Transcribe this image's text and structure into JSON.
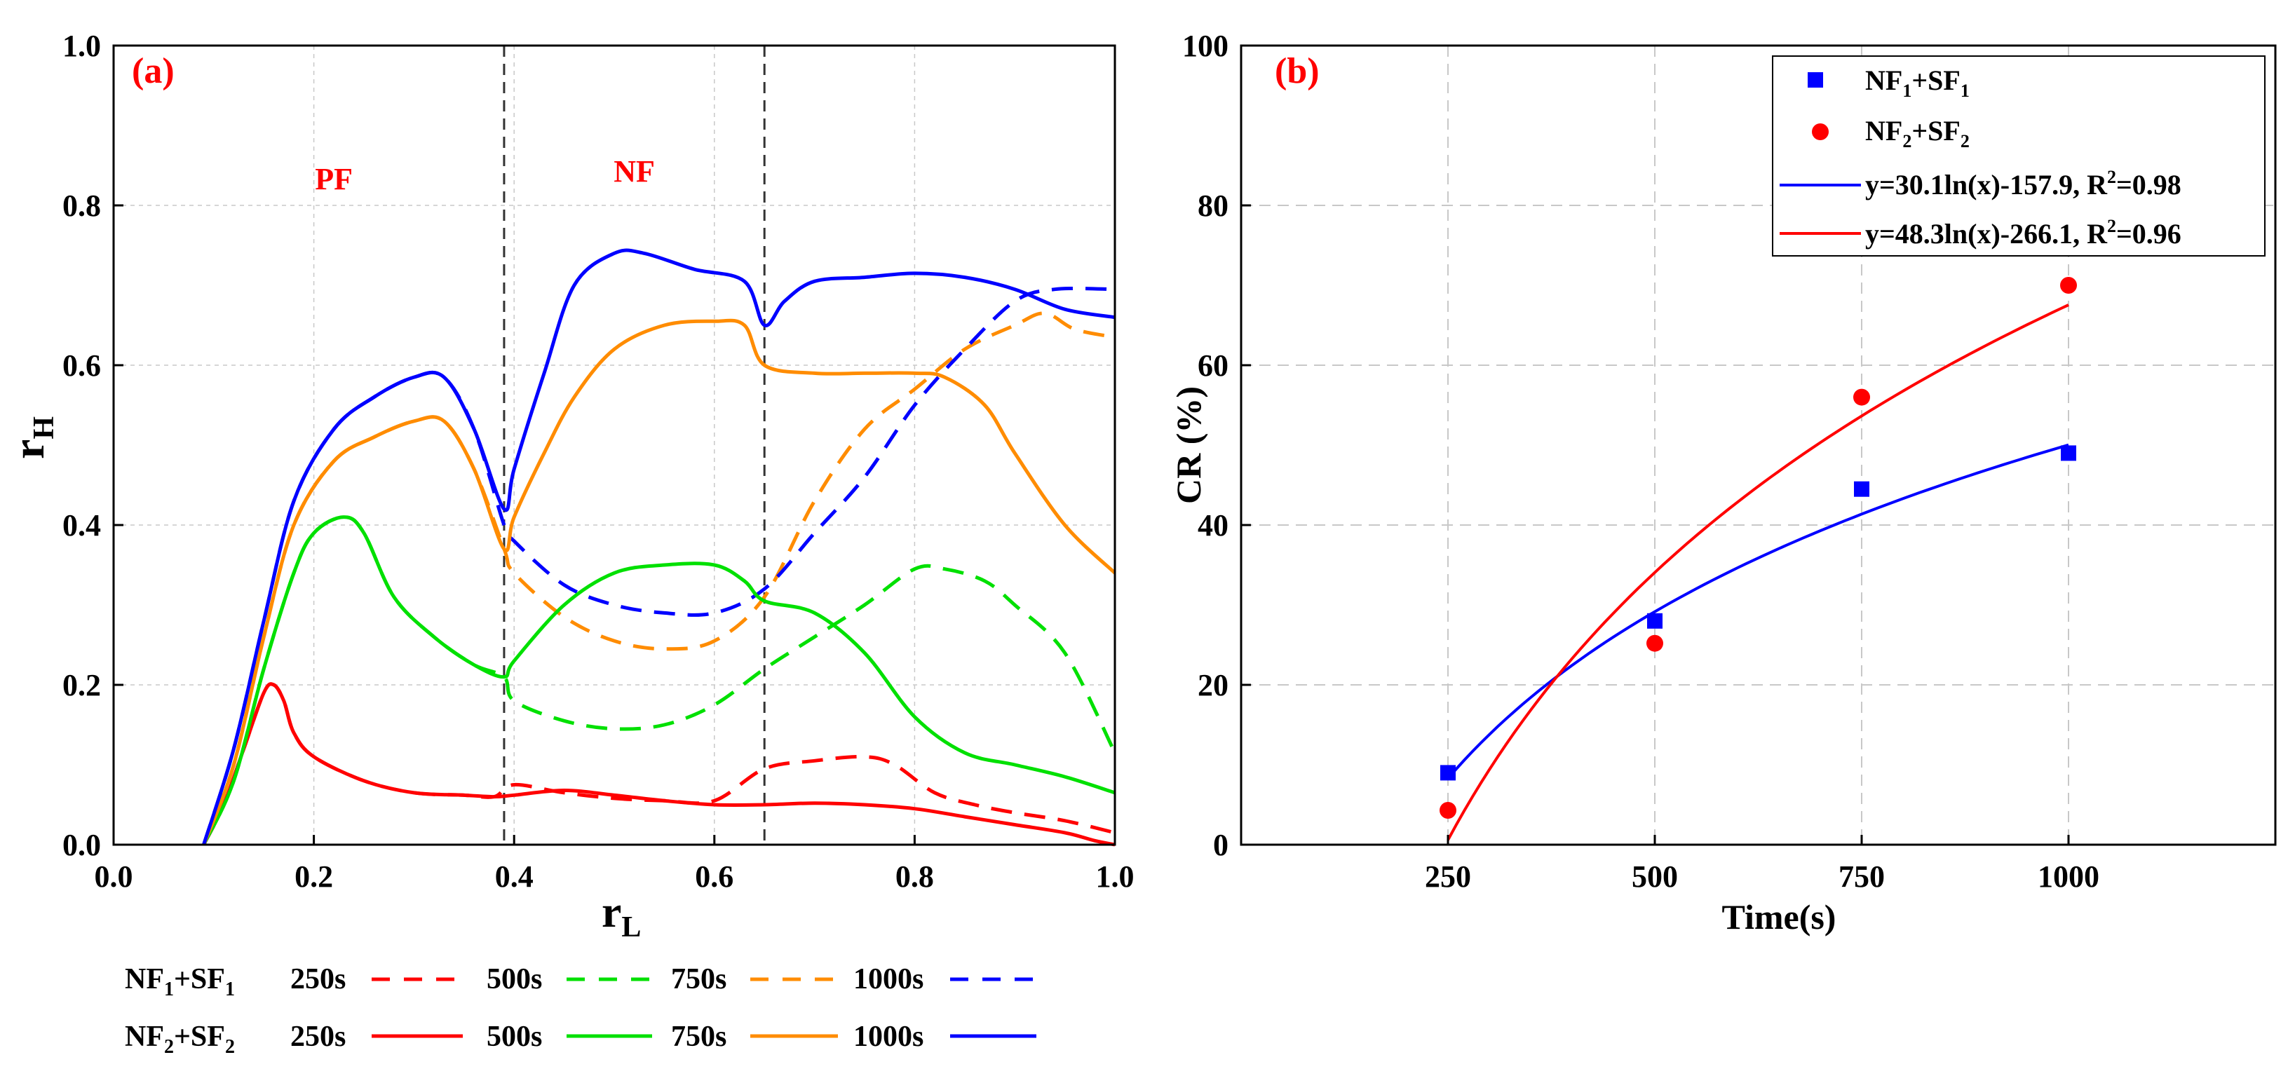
{
  "colors": {
    "red": "#ff0000",
    "green": "#00e000",
    "orange": "#ff8c00",
    "blue": "#0000ff",
    "grid": "#c8c8c8"
  },
  "panel_a": {
    "label": "(a)",
    "xlabel_main": "r",
    "xlabel_sub": "L",
    "ylabel_main": "r",
    "ylabel_sub": "H",
    "region_labels": [
      {
        "text": "PF",
        "x": 0.22,
        "y": 0.82
      },
      {
        "text": "NF",
        "x": 0.52,
        "y": 0.83
      }
    ],
    "xlim": [
      0,
      1
    ],
    "ylim": [
      0,
      1
    ],
    "xticks": [
      "0.0",
      "0.2",
      "0.4",
      "0.6",
      "0.8",
      "1.0"
    ],
    "yticks": [
      "0.0",
      "0.2",
      "0.4",
      "0.6",
      "0.8",
      "1.0"
    ],
    "xtick_values": [
      0,
      0.2,
      0.4,
      0.6,
      0.8,
      1.0
    ],
    "ytick_values": [
      0,
      0.2,
      0.4,
      0.6,
      0.8,
      1.0
    ],
    "vlines": [
      0.39,
      0.65
    ]
  },
  "panel_b": {
    "label": "(b)",
    "xlabel": "Time(s)",
    "ylabel": "CR (%)",
    "xlim": [
      0,
      1250
    ],
    "ylim": [
      0,
      100
    ],
    "xticks": [
      "250",
      "500",
      "750",
      "1000"
    ],
    "xtick_values": [
      250,
      500,
      750,
      1000
    ],
    "yticks": [
      "0",
      "20",
      "40",
      "60",
      "80",
      "100"
    ],
    "ytick_values": [
      0,
      20,
      40,
      60,
      80,
      100
    ],
    "legend": {
      "s1_a": "NF",
      "s1_b": "1",
      "s1_c": "+SF",
      "s1_d": "1",
      "s2_a": "NF",
      "s2_b": "2",
      "s2_c": "+SF",
      "s2_d": "2",
      "f1_a": "y=30.1ln(x)-157.9, R",
      "f1_b": "2",
      "f1_c": "=0.98",
      "f2_a": "y=48.3ln(x)-266.1, R",
      "f2_b": "2",
      "f2_c": "=0.96"
    }
  },
  "bottom_legend": {
    "row1_a": "NF",
    "row1_b": "1",
    "row1_c": "+SF",
    "row1_d": "1",
    "row2_a": "NF",
    "row2_b": "2",
    "row2_c": "+SF",
    "row2_d": "2",
    "t250": "250s",
    "t500": "500s",
    "t750": "750s",
    "t1000": "1000s"
  },
  "chart_data": [
    {
      "type": "line",
      "title": "(a)",
      "xlabel": "rL",
      "ylabel": "rH",
      "xlim": [
        0,
        1
      ],
      "ylim": [
        0,
        1
      ],
      "series": [
        {
          "name": "NF1+SF1 250s",
          "color": "#ff0000",
          "dash": true,
          "points": [
            [
              0.09,
              0
            ],
            [
              0.11,
              0.05
            ],
            [
              0.13,
              0.12
            ],
            [
              0.15,
              0.19
            ],
            [
              0.16,
              0.2
            ],
            [
              0.17,
              0.18
            ],
            [
              0.18,
              0.14
            ],
            [
              0.2,
              0.11
            ],
            [
              0.25,
              0.08
            ],
            [
              0.3,
              0.065
            ],
            [
              0.35,
              0.062
            ],
            [
              0.38,
              0.06
            ],
            [
              0.4,
              0.075
            ],
            [
              0.45,
              0.065
            ],
            [
              0.5,
              0.058
            ],
            [
              0.55,
              0.055
            ],
            [
              0.6,
              0.055
            ],
            [
              0.65,
              0.095
            ],
            [
              0.7,
              0.105
            ],
            [
              0.75,
              0.11
            ],
            [
              0.78,
              0.1
            ],
            [
              0.82,
              0.065
            ],
            [
              0.86,
              0.05
            ],
            [
              0.9,
              0.04
            ],
            [
              0.95,
              0.03
            ],
            [
              1.0,
              0.015
            ]
          ]
        },
        {
          "name": "NF1+SF1 500s",
          "color": "#00e000",
          "dash": true,
          "points": [
            [
              0.09,
              0
            ],
            [
              0.12,
              0.08
            ],
            [
              0.15,
              0.22
            ],
            [
              0.18,
              0.34
            ],
            [
              0.2,
              0.39
            ],
            [
              0.23,
              0.41
            ],
            [
              0.25,
              0.39
            ],
            [
              0.28,
              0.31
            ],
            [
              0.32,
              0.26
            ],
            [
              0.36,
              0.225
            ],
            [
              0.39,
              0.21
            ],
            [
              0.4,
              0.18
            ],
            [
              0.45,
              0.155
            ],
            [
              0.5,
              0.145
            ],
            [
              0.55,
              0.15
            ],
            [
              0.6,
              0.175
            ],
            [
              0.65,
              0.22
            ],
            [
              0.7,
              0.26
            ],
            [
              0.75,
              0.3
            ],
            [
              0.8,
              0.345
            ],
            [
              0.83,
              0.345
            ],
            [
              0.87,
              0.33
            ],
            [
              0.9,
              0.3
            ],
            [
              0.95,
              0.24
            ],
            [
              1.0,
              0.115
            ]
          ]
        },
        {
          "name": "NF1+SF1 750s",
          "color": "#ff8c00",
          "dash": true,
          "points": [
            [
              0.09,
              0
            ],
            [
              0.12,
              0.1
            ],
            [
              0.15,
              0.26
            ],
            [
              0.18,
              0.4
            ],
            [
              0.22,
              0.48
            ],
            [
              0.26,
              0.51
            ],
            [
              0.3,
              0.53
            ],
            [
              0.33,
              0.53
            ],
            [
              0.36,
              0.47
            ],
            [
              0.39,
              0.37
            ],
            [
              0.4,
              0.34
            ],
            [
              0.45,
              0.285
            ],
            [
              0.5,
              0.255
            ],
            [
              0.55,
              0.245
            ],
            [
              0.6,
              0.255
            ],
            [
              0.65,
              0.31
            ],
            [
              0.7,
              0.43
            ],
            [
              0.75,
              0.52
            ],
            [
              0.8,
              0.57
            ],
            [
              0.85,
              0.62
            ],
            [
              0.9,
              0.65
            ],
            [
              0.93,
              0.665
            ],
            [
              0.96,
              0.645
            ],
            [
              1.0,
              0.635
            ]
          ]
        },
        {
          "name": "NF1+SF1 1000s",
          "color": "#0000ff",
          "dash": true,
          "points": [
            [
              0.09,
              0
            ],
            [
              0.12,
              0.12
            ],
            [
              0.15,
              0.28
            ],
            [
              0.18,
              0.43
            ],
            [
              0.22,
              0.52
            ],
            [
              0.26,
              0.56
            ],
            [
              0.3,
              0.585
            ],
            [
              0.33,
              0.585
            ],
            [
              0.36,
              0.52
            ],
            [
              0.39,
              0.4
            ],
            [
              0.4,
              0.38
            ],
            [
              0.45,
              0.325
            ],
            [
              0.5,
              0.3
            ],
            [
              0.55,
              0.29
            ],
            [
              0.6,
              0.29
            ],
            [
              0.65,
              0.32
            ],
            [
              0.7,
              0.39
            ],
            [
              0.75,
              0.46
            ],
            [
              0.8,
              0.55
            ],
            [
              0.85,
              0.62
            ],
            [
              0.9,
              0.68
            ],
            [
              0.94,
              0.695
            ],
            [
              1.0,
              0.695
            ]
          ]
        },
        {
          "name": "NF2+SF2 250s",
          "color": "#ff0000",
          "dash": false,
          "points": [
            [
              0.09,
              0
            ],
            [
              0.11,
              0.05
            ],
            [
              0.13,
              0.12
            ],
            [
              0.15,
              0.19
            ],
            [
              0.16,
              0.2
            ],
            [
              0.17,
              0.18
            ],
            [
              0.18,
              0.14
            ],
            [
              0.2,
              0.11
            ],
            [
              0.25,
              0.08
            ],
            [
              0.3,
              0.065
            ],
            [
              0.35,
              0.062
            ],
            [
              0.38,
              0.06
            ],
            [
              0.4,
              0.062
            ],
            [
              0.45,
              0.068
            ],
            [
              0.5,
              0.062
            ],
            [
              0.55,
              0.055
            ],
            [
              0.6,
              0.05
            ],
            [
              0.65,
              0.05
            ],
            [
              0.7,
              0.052
            ],
            [
              0.75,
              0.05
            ],
            [
              0.8,
              0.045
            ],
            [
              0.85,
              0.035
            ],
            [
              0.9,
              0.025
            ],
            [
              0.95,
              0.015
            ],
            [
              0.98,
              0.005
            ],
            [
              1.0,
              0
            ]
          ]
        },
        {
          "name": "NF2+SF2 500s",
          "color": "#00e000",
          "dash": false,
          "points": [
            [
              0.09,
              0
            ],
            [
              0.12,
              0.08
            ],
            [
              0.15,
              0.22
            ],
            [
              0.18,
              0.34
            ],
            [
              0.2,
              0.39
            ],
            [
              0.23,
              0.41
            ],
            [
              0.25,
              0.39
            ],
            [
              0.28,
              0.31
            ],
            [
              0.32,
              0.26
            ],
            [
              0.36,
              0.225
            ],
            [
              0.39,
              0.21
            ],
            [
              0.4,
              0.23
            ],
            [
              0.45,
              0.3
            ],
            [
              0.5,
              0.34
            ],
            [
              0.55,
              0.35
            ],
            [
              0.6,
              0.35
            ],
            [
              0.63,
              0.33
            ],
            [
              0.65,
              0.305
            ],
            [
              0.7,
              0.29
            ],
            [
              0.75,
              0.24
            ],
            [
              0.8,
              0.16
            ],
            [
              0.85,
              0.115
            ],
            [
              0.9,
              0.1
            ],
            [
              0.95,
              0.085
            ],
            [
              1.0,
              0.065
            ]
          ]
        },
        {
          "name": "NF2+SF2 750s",
          "color": "#ff8c00",
          "dash": false,
          "points": [
            [
              0.09,
              0
            ],
            [
              0.12,
              0.1
            ],
            [
              0.15,
              0.26
            ],
            [
              0.18,
              0.4
            ],
            [
              0.22,
              0.48
            ],
            [
              0.26,
              0.51
            ],
            [
              0.3,
              0.53
            ],
            [
              0.33,
              0.53
            ],
            [
              0.36,
              0.47
            ],
            [
              0.39,
              0.37
            ],
            [
              0.4,
              0.41
            ],
            [
              0.43,
              0.49
            ],
            [
              0.46,
              0.56
            ],
            [
              0.5,
              0.62
            ],
            [
              0.55,
              0.65
            ],
            [
              0.6,
              0.655
            ],
            [
              0.63,
              0.65
            ],
            [
              0.65,
              0.6
            ],
            [
              0.7,
              0.59
            ],
            [
              0.75,
              0.59
            ],
            [
              0.8,
              0.59
            ],
            [
              0.83,
              0.585
            ],
            [
              0.87,
              0.55
            ],
            [
              0.9,
              0.49
            ],
            [
              0.95,
              0.4
            ],
            [
              1.0,
              0.34
            ]
          ]
        },
        {
          "name": "NF2+SF2 1000s",
          "color": "#0000ff",
          "dash": false,
          "points": [
            [
              0.09,
              0
            ],
            [
              0.12,
              0.12
            ],
            [
              0.15,
              0.28
            ],
            [
              0.18,
              0.43
            ],
            [
              0.22,
              0.52
            ],
            [
              0.26,
              0.56
            ],
            [
              0.3,
              0.585
            ],
            [
              0.33,
              0.585
            ],
            [
              0.36,
              0.52
            ],
            [
              0.39,
              0.42
            ],
            [
              0.4,
              0.47
            ],
            [
              0.43,
              0.59
            ],
            [
              0.46,
              0.7
            ],
            [
              0.5,
              0.74
            ],
            [
              0.53,
              0.74
            ],
            [
              0.58,
              0.72
            ],
            [
              0.63,
              0.705
            ],
            [
              0.65,
              0.65
            ],
            [
              0.67,
              0.68
            ],
            [
              0.7,
              0.705
            ],
            [
              0.75,
              0.71
            ],
            [
              0.8,
              0.715
            ],
            [
              0.85,
              0.71
            ],
            [
              0.9,
              0.695
            ],
            [
              0.95,
              0.67
            ],
            [
              1.0,
              0.66
            ]
          ]
        }
      ]
    },
    {
      "type": "scatter",
      "title": "(b)",
      "xlabel": "Time(s)",
      "ylabel": "CR (%)",
      "xlim": [
        0,
        1250
      ],
      "ylim": [
        0,
        100
      ],
      "series": [
        {
          "name": "NF1+SF1",
          "marker": "square",
          "color": "#0000ff",
          "x": [
            250,
            500,
            750,
            1000
          ],
          "y": [
            9,
            28,
            44.5,
            49
          ]
        },
        {
          "name": "NF2+SF2",
          "marker": "circle",
          "color": "#ff0000",
          "x": [
            250,
            500,
            750,
            1000
          ],
          "y": [
            4.3,
            25.2,
            56,
            70
          ]
        }
      ],
      "fits": [
        {
          "name": "y=30.1ln(x)-157.9, R2=0.98",
          "color": "#0000ff",
          "a": 30.1,
          "b": -157.9,
          "xmin": 250,
          "xmax": 1000
        },
        {
          "name": "y=48.3ln(x)-266.1, R2=0.96",
          "color": "#ff0000",
          "a": 48.3,
          "b": -266.1,
          "xmin": 250,
          "xmax": 1000
        }
      ]
    }
  ]
}
